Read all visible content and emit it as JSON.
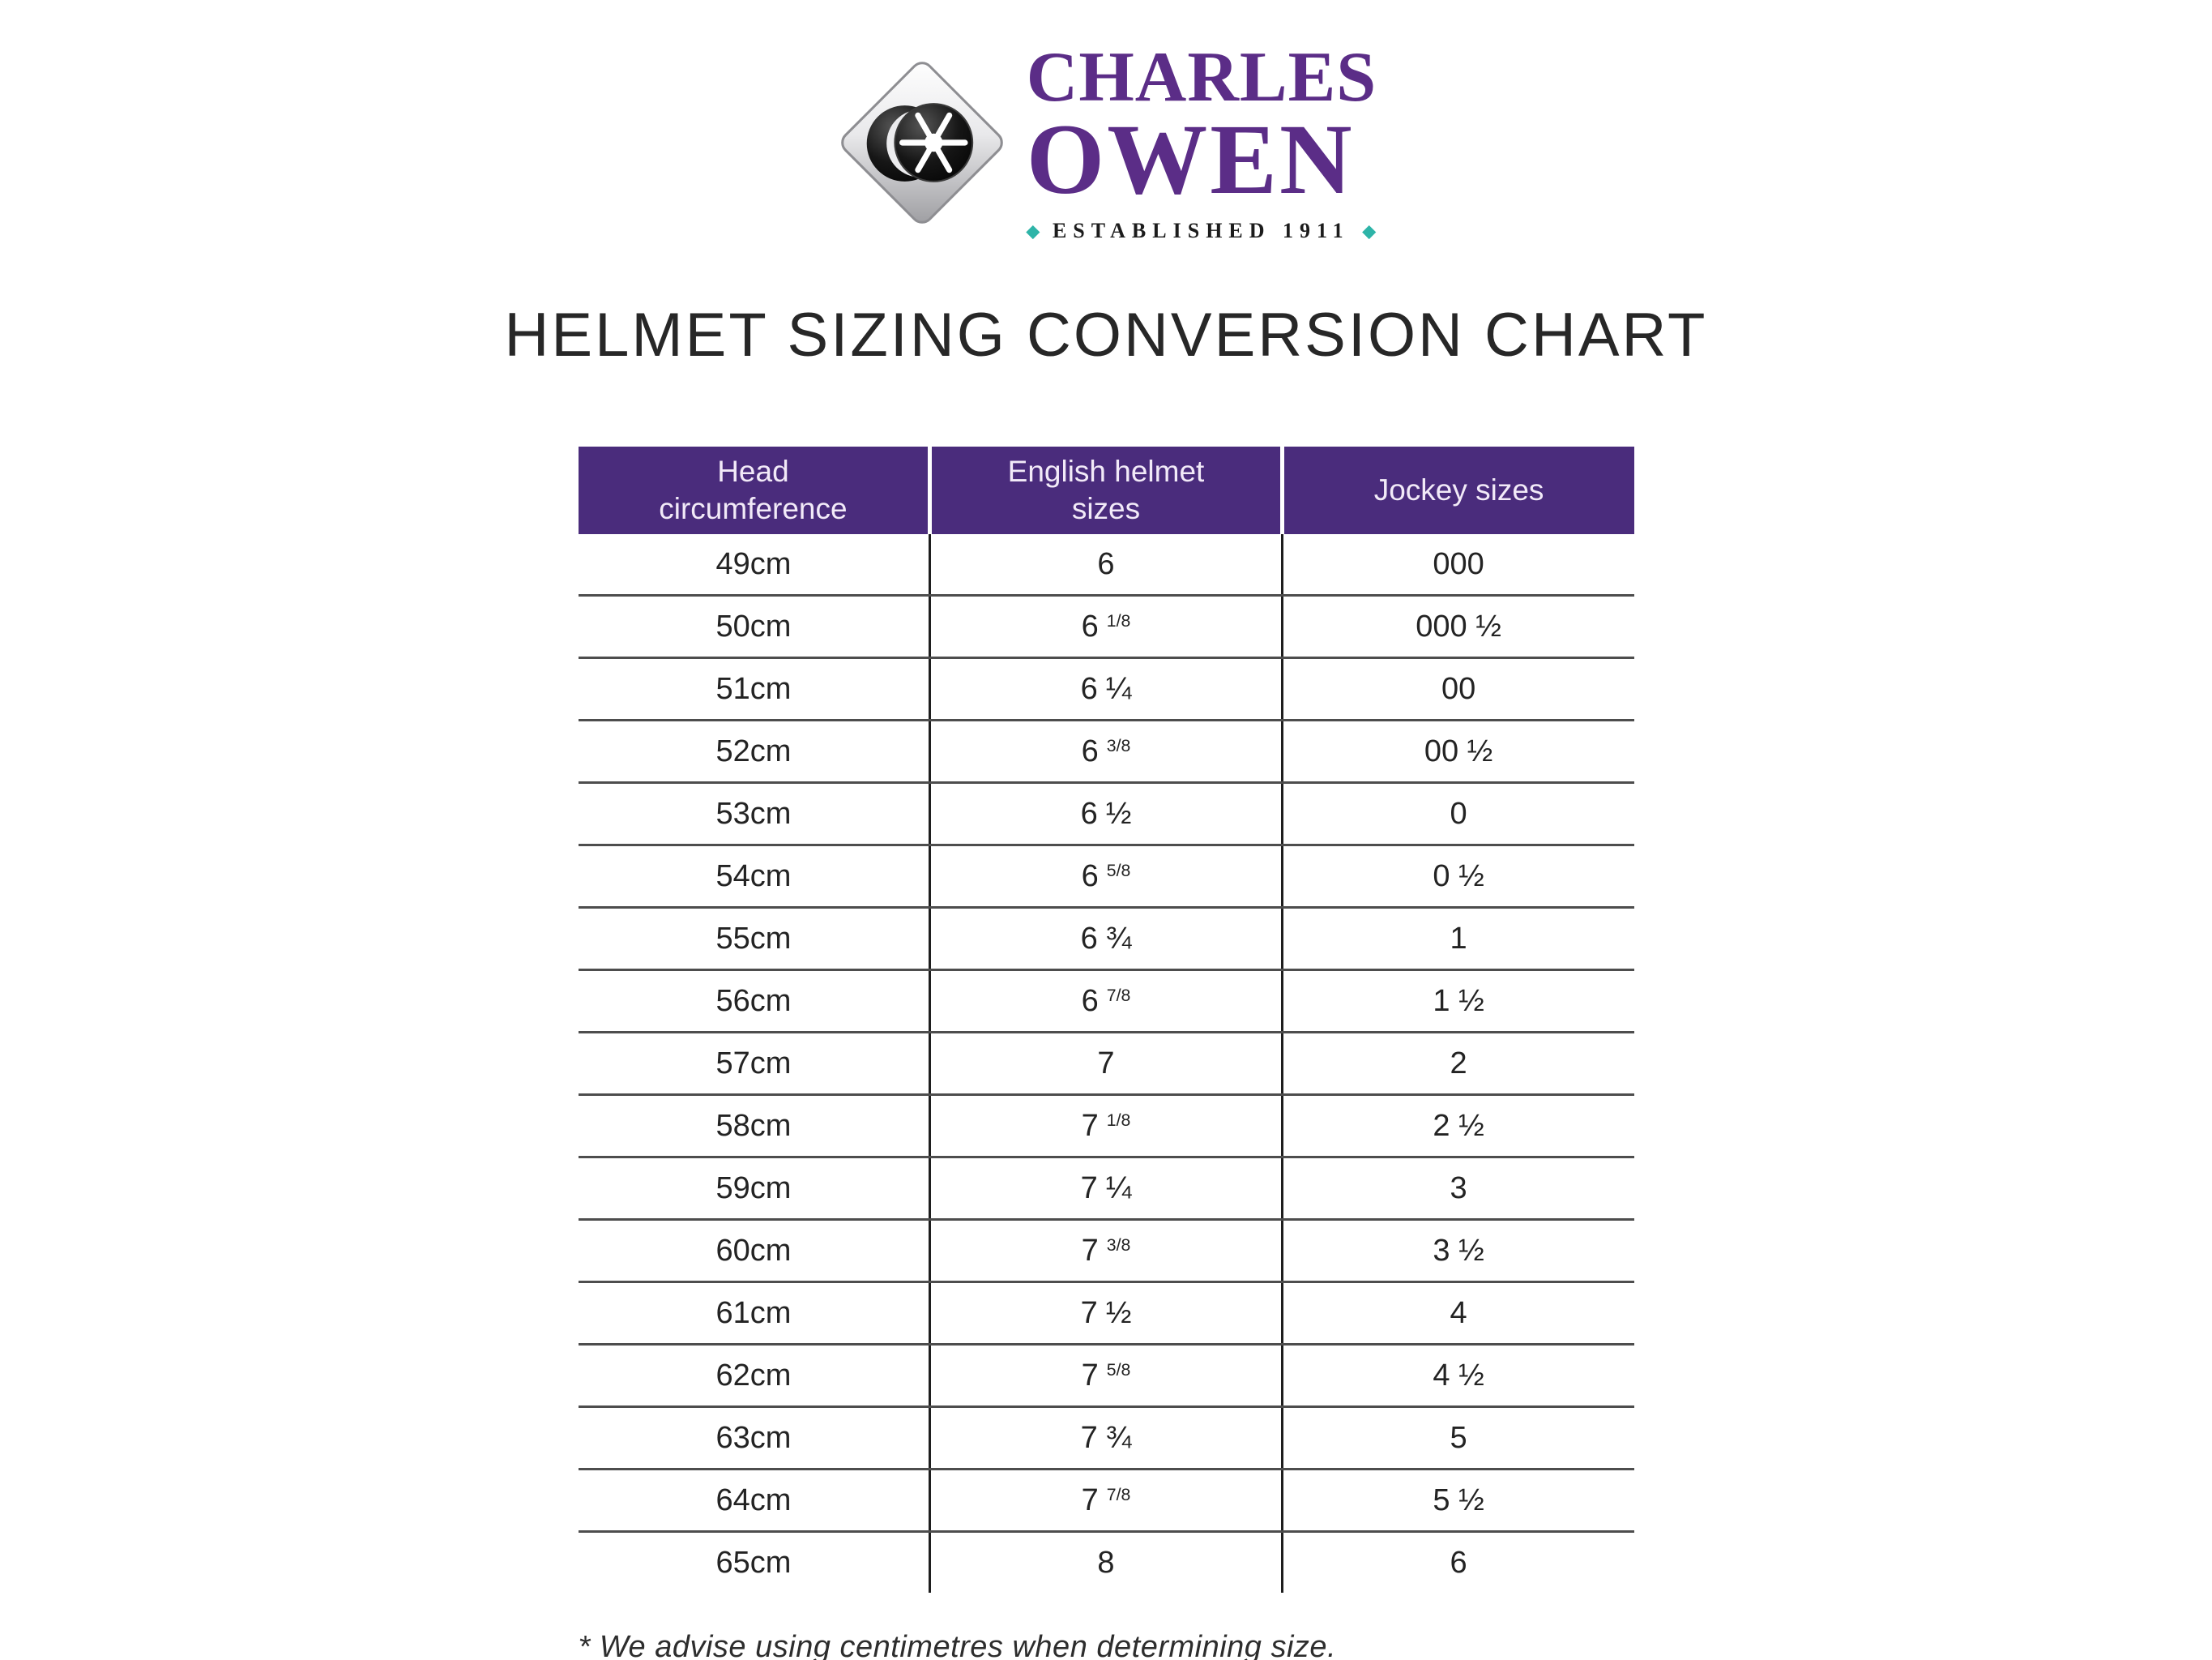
{
  "colors": {
    "brand_purple": "#5b2d87",
    "header_purple": "#4a2c7c",
    "teal": "#2eb4a8",
    "title_text": "#272727",
    "body_text": "#232323"
  },
  "brand": {
    "name_line1": "CHARLES",
    "name_line2": "OWEN",
    "established": "ESTABLISHED 1911",
    "diamond_icon": "◆",
    "emblem_icon": "diamond-star-emblem"
  },
  "page_title": "HELMET SIZING CONVERSION CHART",
  "table": {
    "columns": [
      {
        "lines": [
          "Head",
          "circumference"
        ]
      },
      {
        "lines": [
          "English helmet",
          "sizes"
        ]
      },
      {
        "lines": [
          "Jockey sizes"
        ]
      }
    ],
    "rows": [
      {
        "cm": "49cm",
        "english_whole": "6",
        "english_frac": "",
        "jockey": "000"
      },
      {
        "cm": "50cm",
        "english_whole": "6",
        "english_frac": "1/8",
        "jockey": "000 ½"
      },
      {
        "cm": "51cm",
        "english_whole": "6",
        "english_frac": "¼",
        "jockey": "00"
      },
      {
        "cm": "52cm",
        "english_whole": "6",
        "english_frac": "3/8",
        "jockey": "00 ½"
      },
      {
        "cm": "53cm",
        "english_whole": "6",
        "english_frac": "½",
        "jockey": "0"
      },
      {
        "cm": "54cm",
        "english_whole": "6",
        "english_frac": "5/8",
        "jockey": "0 ½"
      },
      {
        "cm": "55cm",
        "english_whole": "6",
        "english_frac": "¾",
        "jockey": "1"
      },
      {
        "cm": "56cm",
        "english_whole": "6",
        "english_frac": "7/8",
        "jockey": "1 ½"
      },
      {
        "cm": "57cm",
        "english_whole": "7",
        "english_frac": "",
        "jockey": "2"
      },
      {
        "cm": "58cm",
        "english_whole": "7",
        "english_frac": "1/8",
        "jockey": "2 ½"
      },
      {
        "cm": "59cm",
        "english_whole": "7",
        "english_frac": "¼",
        "jockey": "3"
      },
      {
        "cm": "60cm",
        "english_whole": "7",
        "english_frac": "3/8",
        "jockey": "3 ½"
      },
      {
        "cm": "61cm",
        "english_whole": "7",
        "english_frac": "½",
        "jockey": "4"
      },
      {
        "cm": "62cm",
        "english_whole": "7",
        "english_frac": "5/8",
        "jockey": "4 ½"
      },
      {
        "cm": "63cm",
        "english_whole": "7",
        "english_frac": "¾",
        "jockey": "5"
      },
      {
        "cm": "64cm",
        "english_whole": "7",
        "english_frac": "7/8",
        "jockey": "5 ½"
      },
      {
        "cm": "65cm",
        "english_whole": "8",
        "english_frac": "",
        "jockey": "6"
      }
    ]
  },
  "footnote": "* We advise using centimetres when determining size."
}
